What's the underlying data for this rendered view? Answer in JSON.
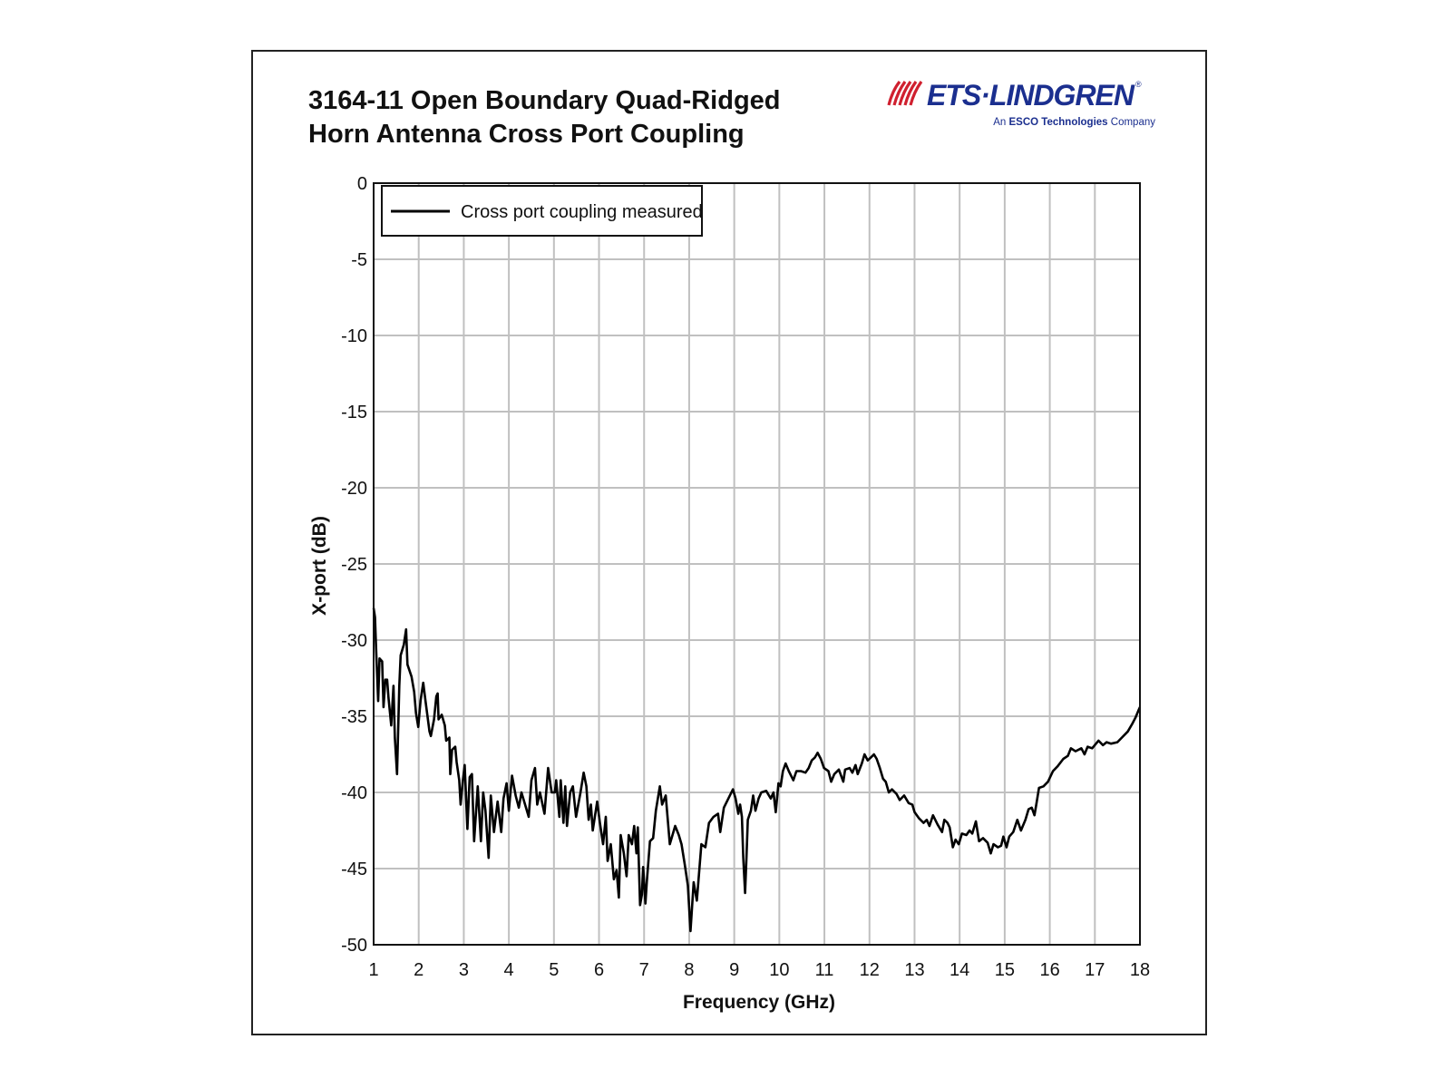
{
  "header": {
    "title_line1": "3164-11 Open Boundary Quad-Ridged",
    "title_line2": "Horn Antenna Cross Port Coupling",
    "logo_text": "ETS·LINDGREN",
    "logo_sub_prefix": "An ",
    "logo_sub_bold": "ESCO Technologies",
    "logo_sub_suffix": " Company",
    "logo_reg": "®"
  },
  "colors": {
    "line": "#000000",
    "grid": "#c0c0c0",
    "logo_red": "#d0202f",
    "logo_blue": "#1b2f8f"
  },
  "chart_data": {
    "type": "line",
    "title": "3164-11 Open Boundary Quad-Ridged Horn Antenna Cross Port Coupling",
    "xlabel": "Frequency (GHz)",
    "ylabel": "X-port (dB)",
    "xlim": [
      1,
      18
    ],
    "ylim": [
      -50,
      0
    ],
    "xticks": [
      "1",
      "2",
      "3",
      "4",
      "5",
      "6",
      "7",
      "8",
      "9",
      "10",
      "11",
      "12",
      "13",
      "14",
      "15",
      "16",
      "17",
      "18"
    ],
    "yticks": [
      "0",
      "-5",
      "-10",
      "-15",
      "-20",
      "-25",
      "-30",
      "-35",
      "-40",
      "-45",
      "-50"
    ],
    "grid": true,
    "legend_position": "top-left",
    "series": [
      {
        "name": "Cross port coupling measured",
        "points": [
          [
            1.0,
            -27.9
          ],
          [
            1.03,
            -28.5
          ],
          [
            1.06,
            -31
          ],
          [
            1.1,
            -34
          ],
          [
            1.13,
            -31.2
          ],
          [
            1.19,
            -31.4
          ],
          [
            1.22,
            -34.4
          ],
          [
            1.26,
            -32.6
          ],
          [
            1.3,
            -32.6
          ],
          [
            1.33,
            -33.8
          ],
          [
            1.39,
            -35.6
          ],
          [
            1.44,
            -33
          ],
          [
            1.47,
            -36.4
          ],
          [
            1.52,
            -38.8
          ],
          [
            1.57,
            -33
          ],
          [
            1.6,
            -31
          ],
          [
            1.67,
            -30.3
          ],
          [
            1.72,
            -29.3
          ],
          [
            1.75,
            -31.6
          ],
          [
            1.84,
            -32.4
          ],
          [
            1.9,
            -33.4
          ],
          [
            1.94,
            -34.8
          ],
          [
            1.99,
            -35.7
          ],
          [
            2.04,
            -34
          ],
          [
            2.1,
            -32.8
          ],
          [
            2.15,
            -34
          ],
          [
            2.24,
            -36
          ],
          [
            2.27,
            -36.3
          ],
          [
            2.34,
            -35.2
          ],
          [
            2.39,
            -33.7
          ],
          [
            2.42,
            -33.5
          ],
          [
            2.44,
            -35.2
          ],
          [
            2.51,
            -34.9
          ],
          [
            2.58,
            -35.6
          ],
          [
            2.61,
            -36.6
          ],
          [
            2.68,
            -36.4
          ],
          [
            2.7,
            -38.8
          ],
          [
            2.74,
            -37.2
          ],
          [
            2.81,
            -37
          ],
          [
            2.84,
            -38
          ],
          [
            2.9,
            -39.2
          ],
          [
            2.93,
            -40.8
          ],
          [
            2.98,
            -39.2
          ],
          [
            3.02,
            -38.2
          ],
          [
            3.08,
            -42.4
          ],
          [
            3.13,
            -39
          ],
          [
            3.18,
            -38.8
          ],
          [
            3.23,
            -43.2
          ],
          [
            3.31,
            -39.6
          ],
          [
            3.38,
            -43.2
          ],
          [
            3.43,
            -40
          ],
          [
            3.48,
            -41.2
          ],
          [
            3.55,
            -44.3
          ],
          [
            3.6,
            -40.2
          ],
          [
            3.67,
            -42.6
          ],
          [
            3.75,
            -40.6
          ],
          [
            3.83,
            -42.6
          ],
          [
            3.88,
            -40.4
          ],
          [
            3.95,
            -39.4
          ],
          [
            4.0,
            -41.2
          ],
          [
            4.07,
            -38.9
          ],
          [
            4.15,
            -40.2
          ],
          [
            4.22,
            -41
          ],
          [
            4.28,
            -40
          ],
          [
            4.36,
            -40.8
          ],
          [
            4.44,
            -41.6
          ],
          [
            4.5,
            -39.2
          ],
          [
            4.58,
            -38.4
          ],
          [
            4.63,
            -40.8
          ],
          [
            4.69,
            -40
          ],
          [
            4.79,
            -41.4
          ],
          [
            4.87,
            -38.4
          ],
          [
            4.95,
            -40
          ],
          [
            5.02,
            -40
          ],
          [
            5.05,
            -39.2
          ],
          [
            5.12,
            -41.6
          ],
          [
            5.15,
            -39.2
          ],
          [
            5.21,
            -42
          ],
          [
            5.25,
            -39.6
          ],
          [
            5.29,
            -42.2
          ],
          [
            5.36,
            -40
          ],
          [
            5.42,
            -39.6
          ],
          [
            5.49,
            -41.6
          ],
          [
            5.59,
            -40
          ],
          [
            5.66,
            -38.7
          ],
          [
            5.72,
            -39.6
          ],
          [
            5.77,
            -41.8
          ],
          [
            5.82,
            -40.8
          ],
          [
            5.86,
            -42.5
          ],
          [
            5.96,
            -40.6
          ],
          [
            6.02,
            -42
          ],
          [
            6.09,
            -43.4
          ],
          [
            6.15,
            -41.6
          ],
          [
            6.19,
            -44.5
          ],
          [
            6.26,
            -43.4
          ],
          [
            6.33,
            -45.7
          ],
          [
            6.39,
            -45.1
          ],
          [
            6.44,
            -46.9
          ],
          [
            6.48,
            -42.8
          ],
          [
            6.55,
            -44
          ],
          [
            6.61,
            -45.5
          ],
          [
            6.66,
            -42.8
          ],
          [
            6.73,
            -43.4
          ],
          [
            6.78,
            -42.2
          ],
          [
            6.83,
            -44
          ],
          [
            6.86,
            -42.3
          ],
          [
            6.91,
            -47.4
          ],
          [
            6.95,
            -46.7
          ],
          [
            6.98,
            -44.9
          ],
          [
            7.03,
            -47.3
          ],
          [
            7.06,
            -45.9
          ],
          [
            7.13,
            -43.2
          ],
          [
            7.2,
            -43
          ],
          [
            7.26,
            -41.2
          ],
          [
            7.35,
            -39.6
          ],
          [
            7.4,
            -40.8
          ],
          [
            7.48,
            -40.2
          ],
          [
            7.57,
            -43.4
          ],
          [
            7.69,
            -42.2
          ],
          [
            7.77,
            -42.8
          ],
          [
            7.83,
            -43.4
          ],
          [
            7.9,
            -44.7
          ],
          [
            7.97,
            -46.1
          ],
          [
            8.03,
            -49.1
          ],
          [
            8.1,
            -45.9
          ],
          [
            8.17,
            -47.1
          ],
          [
            8.27,
            -43.4
          ],
          [
            8.36,
            -43.6
          ],
          [
            8.44,
            -42
          ],
          [
            8.54,
            -41.6
          ],
          [
            8.64,
            -41.4
          ],
          [
            8.69,
            -42.6
          ],
          [
            8.77,
            -41
          ],
          [
            8.87,
            -40.4
          ],
          [
            8.97,
            -39.8
          ],
          [
            9.03,
            -40.4
          ],
          [
            9.09,
            -41.4
          ],
          [
            9.13,
            -40.8
          ],
          [
            9.17,
            -41.6
          ],
          [
            9.2,
            -44.3
          ],
          [
            9.24,
            -46.6
          ],
          [
            9.27,
            -44.3
          ],
          [
            9.3,
            -41.8
          ],
          [
            9.37,
            -41.2
          ],
          [
            9.42,
            -40.2
          ],
          [
            9.47,
            -41.2
          ],
          [
            9.54,
            -40.4
          ],
          [
            9.6,
            -40
          ],
          [
            9.71,
            -39.9
          ],
          [
            9.81,
            -40.4
          ],
          [
            9.87,
            -40
          ],
          [
            9.92,
            -41.3
          ],
          [
            9.98,
            -39.4
          ],
          [
            10.03,
            -39.6
          ],
          [
            10.08,
            -38.6
          ],
          [
            10.14,
            -38.1
          ],
          [
            10.21,
            -38.6
          ],
          [
            10.31,
            -39.2
          ],
          [
            10.38,
            -38.6
          ],
          [
            10.48,
            -38.6
          ],
          [
            10.58,
            -38.7
          ],
          [
            10.65,
            -38.4
          ],
          [
            10.72,
            -37.9
          ],
          [
            10.79,
            -37.7
          ],
          [
            10.85,
            -37.4
          ],
          [
            10.92,
            -37.8
          ],
          [
            10.99,
            -38.4
          ],
          [
            11.09,
            -38.6
          ],
          [
            11.15,
            -39.3
          ],
          [
            11.22,
            -38.8
          ],
          [
            11.32,
            -38.5
          ],
          [
            11.42,
            -39.3
          ],
          [
            11.46,
            -38.5
          ],
          [
            11.56,
            -38.4
          ],
          [
            11.62,
            -38.7
          ],
          [
            11.69,
            -38.2
          ],
          [
            11.74,
            -38.8
          ],
          [
            11.83,
            -38.1
          ],
          [
            11.89,
            -37.5
          ],
          [
            11.96,
            -37.9
          ],
          [
            12.03,
            -37.7
          ],
          [
            12.1,
            -37.5
          ],
          [
            12.16,
            -37.8
          ],
          [
            12.23,
            -38.4
          ],
          [
            12.3,
            -39.1
          ],
          [
            12.36,
            -39.3
          ],
          [
            12.43,
            -40
          ],
          [
            12.5,
            -39.8
          ],
          [
            12.6,
            -40.1
          ],
          [
            12.67,
            -40.5
          ],
          [
            12.77,
            -40.2
          ],
          [
            12.87,
            -40.7
          ],
          [
            12.95,
            -40.8
          ],
          [
            13.0,
            -41.3
          ],
          [
            13.1,
            -41.7
          ],
          [
            13.2,
            -42
          ],
          [
            13.27,
            -41.8
          ],
          [
            13.33,
            -42.2
          ],
          [
            13.41,
            -41.5
          ],
          [
            13.51,
            -42.1
          ],
          [
            13.61,
            -42.6
          ],
          [
            13.66,
            -41.8
          ],
          [
            13.73,
            -42
          ],
          [
            13.78,
            -42.3
          ],
          [
            13.85,
            -43.6
          ],
          [
            13.91,
            -43.1
          ],
          [
            13.98,
            -43.4
          ],
          [
            14.05,
            -42.7
          ],
          [
            14.15,
            -42.8
          ],
          [
            14.22,
            -42.5
          ],
          [
            14.28,
            -42.7
          ],
          [
            14.36,
            -41.9
          ],
          [
            14.43,
            -43.2
          ],
          [
            14.52,
            -43
          ],
          [
            14.62,
            -43.3
          ],
          [
            14.69,
            -44
          ],
          [
            14.75,
            -43.4
          ],
          [
            14.85,
            -43.6
          ],
          [
            14.92,
            -43.5
          ],
          [
            14.97,
            -42.9
          ],
          [
            15.04,
            -43.6
          ],
          [
            15.1,
            -42.9
          ],
          [
            15.19,
            -42.6
          ],
          [
            15.28,
            -41.8
          ],
          [
            15.36,
            -42.5
          ],
          [
            15.46,
            -41.8
          ],
          [
            15.53,
            -41.1
          ],
          [
            15.6,
            -41
          ],
          [
            15.66,
            -41.5
          ],
          [
            15.7,
            -40.8
          ],
          [
            15.76,
            -39.7
          ],
          [
            15.86,
            -39.6
          ],
          [
            15.96,
            -39.3
          ],
          [
            16.07,
            -38.6
          ],
          [
            16.17,
            -38.3
          ],
          [
            16.3,
            -37.8
          ],
          [
            16.4,
            -37.6
          ],
          [
            16.47,
            -37.1
          ],
          [
            16.57,
            -37.3
          ],
          [
            16.7,
            -37.1
          ],
          [
            16.77,
            -37.5
          ],
          [
            16.84,
            -37
          ],
          [
            16.94,
            -37.1
          ],
          [
            17.08,
            -36.6
          ],
          [
            17.18,
            -36.9
          ],
          [
            17.26,
            -36.7
          ],
          [
            17.36,
            -36.8
          ],
          [
            17.5,
            -36.7
          ],
          [
            17.6,
            -36.4
          ],
          [
            17.73,
            -36
          ],
          [
            17.83,
            -35.5
          ],
          [
            17.9,
            -35.1
          ],
          [
            17.97,
            -34.6
          ],
          [
            18.0,
            -34.4
          ]
        ]
      }
    ]
  }
}
